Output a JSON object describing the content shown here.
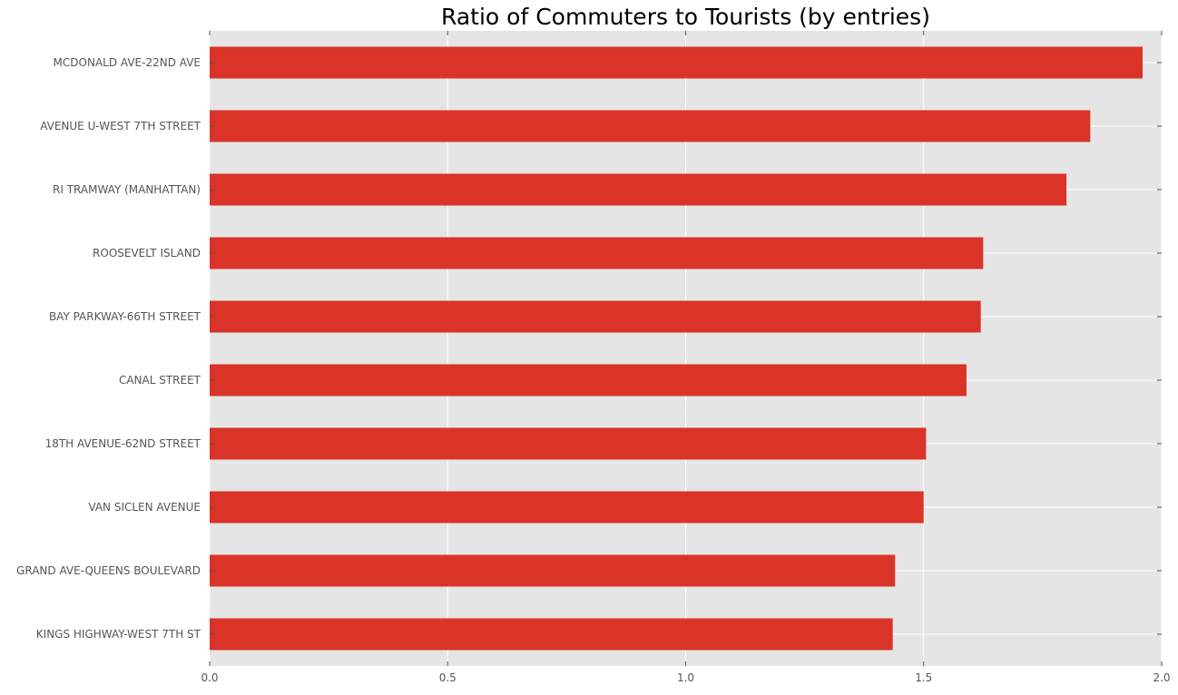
{
  "colors": {
    "bar": "#d93427",
    "plot_background": "#e5e5e5",
    "grid": "#ffffff",
    "tick_text": "#555555",
    "title_text": "#000000"
  },
  "chart_data": {
    "type": "bar",
    "orientation": "horizontal",
    "title": "Ratio of Commuters to Tourists (by entries)",
    "xlabel": "",
    "ylabel": "",
    "xlim": [
      0,
      2.0
    ],
    "x_ticks": [
      0.0,
      0.5,
      1.0,
      1.5,
      2.0
    ],
    "x_tick_labels": [
      "0.0",
      "0.5",
      "1.0",
      "1.5",
      "2.0"
    ],
    "grid": true,
    "legend": "none",
    "categories": [
      "MCDONALD AVE-22ND AVE",
      "AVENUE U-WEST 7TH STREET",
      "RI TRAMWAY (MANHATTAN)",
      "ROOSEVELT ISLAND",
      "BAY PARKWAY-66TH STREET",
      "CANAL STREET",
      "18TH AVENUE-62ND STREET",
      "VAN SICLEN AVENUE",
      "GRAND AVE-QUEENS BOULEVARD",
      "KINGS HIGHWAY-WEST 7TH ST"
    ],
    "values": [
      1.96,
      1.85,
      1.8,
      1.625,
      1.62,
      1.59,
      1.505,
      1.5,
      1.44,
      1.435
    ]
  }
}
